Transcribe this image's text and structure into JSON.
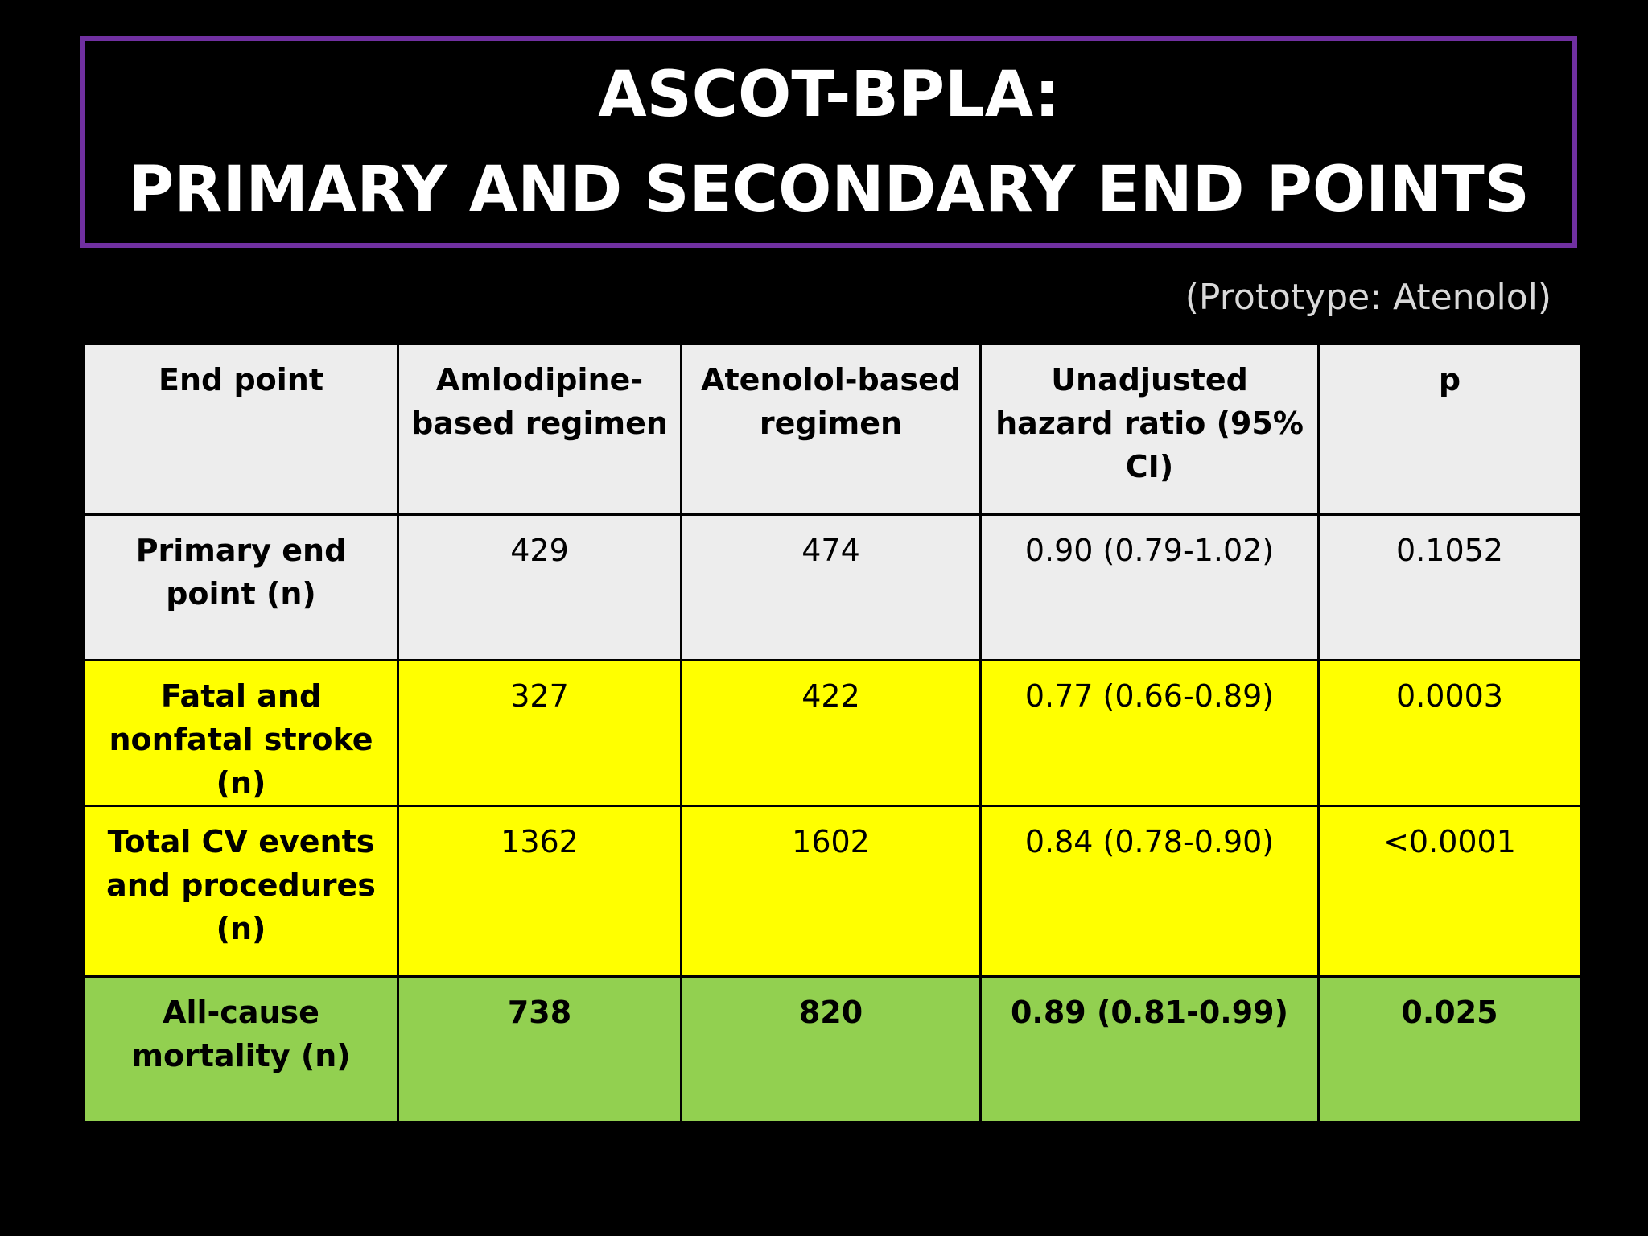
{
  "title": {
    "line1": "ASCOT-BPLA:",
    "line2": "PRIMARY AND SECONDARY END POINTS"
  },
  "subtitle": "(Prototype: Atenolol)",
  "table": {
    "headers": [
      "End point",
      "Amlodipine-based regimen",
      "Atenolol-based regimen",
      "Unadjusted hazard ratio (95% CI)",
      "p"
    ],
    "rows": [
      [
        "Primary end point (n)",
        "429",
        "474",
        "0.90 (0.79-1.02)",
        "0.1052"
      ],
      [
        "Fatal and nonfatal stroke (n)",
        "327",
        "422",
        "0.77 (0.66-0.89)",
        "0.0003"
      ],
      [
        "Total CV events and procedures (n)",
        "1362",
        "1602",
        "0.84 (0.78-0.90)",
        "<0.0001"
      ],
      [
        "All-cause mortality (n)",
        "738",
        "820",
        "0.89 (0.81-0.99)",
        "0.025"
      ]
    ]
  },
  "colors": {
    "border_accent": "#7030a0",
    "row_gray": "#ededed",
    "row_highlight": "#ffff00",
    "row_green": "#92d050"
  }
}
